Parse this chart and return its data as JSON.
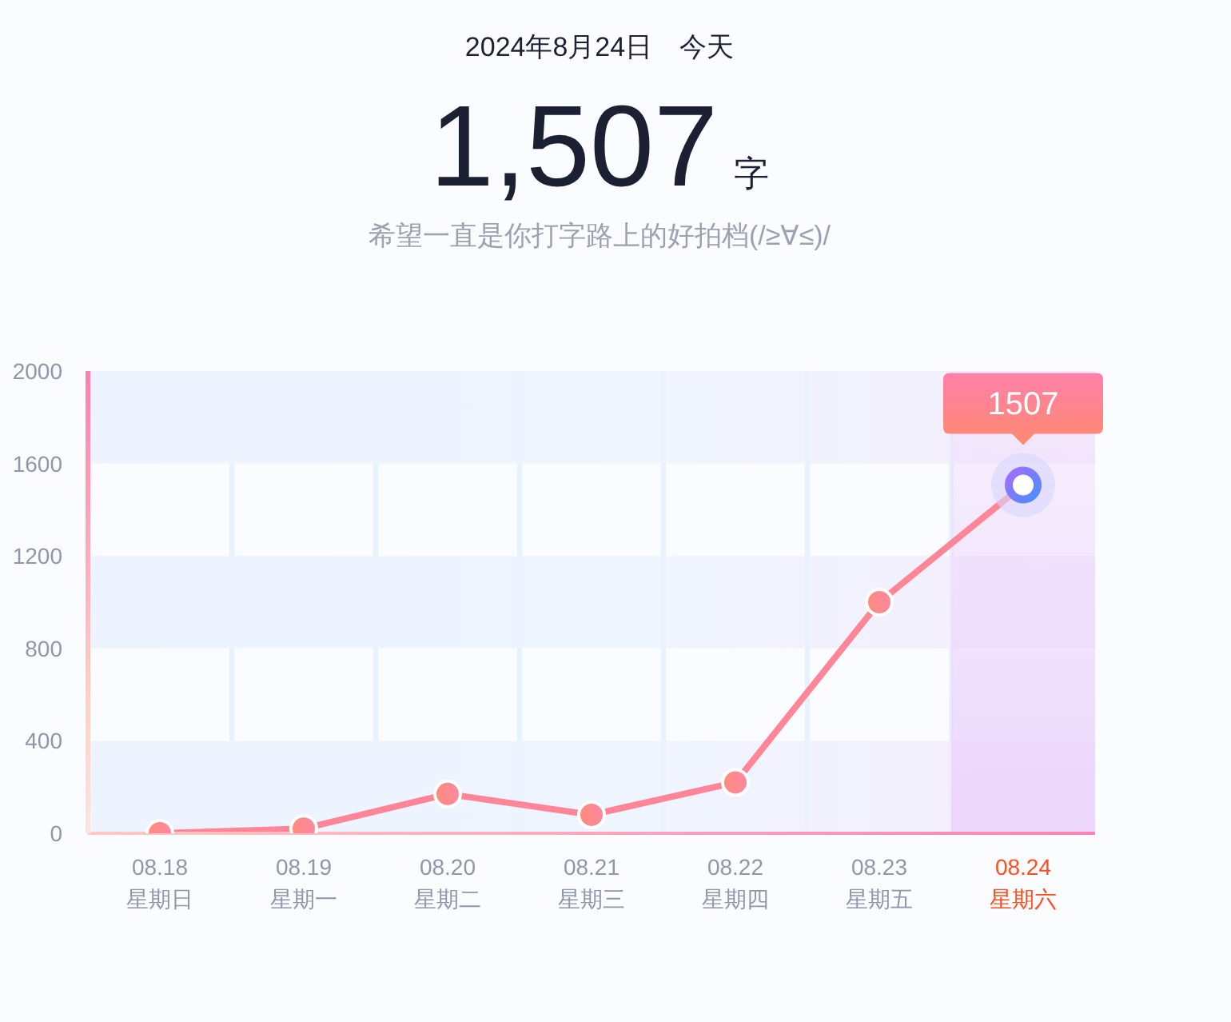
{
  "chart_data": {
    "type": "line",
    "title": "2024年8月24日　今天",
    "subtitle": "希望一直是你打字路上的好拍档(/≥∀≤)/",
    "annotations": [
      "1,507",
      "字"
    ],
    "categories": [
      "08.18\n星期日",
      "08.19\n星期一",
      "08.20\n星期二",
      "08.21\n星期三",
      "08.22\n星期四",
      "08.23\n星期五",
      "08.24\n星期六"
    ],
    "series": [
      {
        "color": "#ff8597",
        "values": [
          0,
          20,
          170,
          80,
          220,
          1000,
          1507
        ],
        "value_labels": [
          null,
          null,
          null,
          null,
          null,
          null,
          "1507"
        ]
      }
    ],
    "ylim": [
      0,
      2000
    ],
    "yticks": [
      0,
      400,
      800,
      1200,
      1600,
      2000
    ],
    "grid": "x",
    "marker": "circle",
    "line_style": "solid",
    "bands": [
      {
        "axis": "y",
        "from": 0,
        "to": 400,
        "color": "#edf4ff"
      },
      {
        "axis": "y",
        "from": 800,
        "to": 1200,
        "color": "#edf4ff"
      },
      {
        "axis": "y",
        "from": 1600,
        "to": 2000,
        "color": "#edf4ff"
      },
      {
        "axis": "x",
        "from": "08.24\n星期六",
        "to": "08.24\n星期六",
        "color": "#ecd6fb"
      }
    ]
  }
}
